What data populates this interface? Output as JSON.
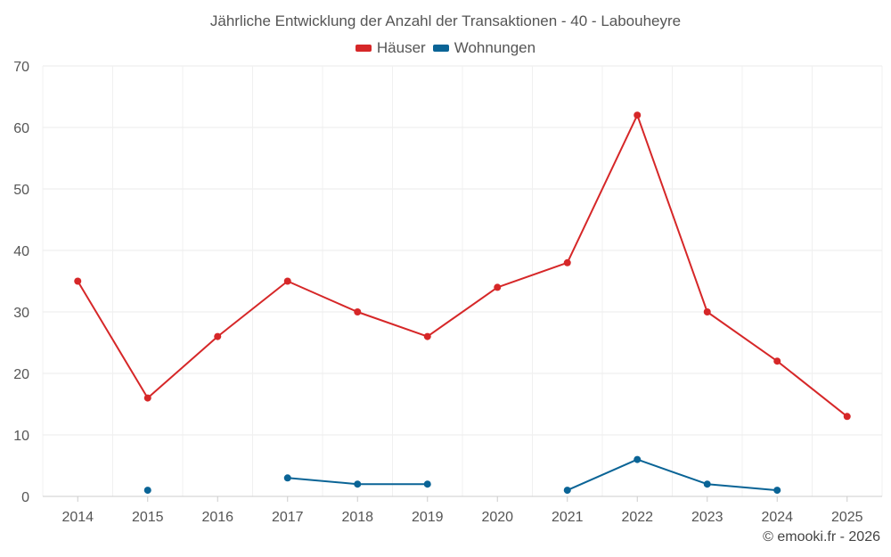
{
  "chart_data": {
    "type": "line",
    "title": "Jährliche Entwicklung der Anzahl der Transaktionen - 40 - Labouheyre",
    "categories": [
      "2014",
      "2015",
      "2016",
      "2017",
      "2018",
      "2019",
      "2020",
      "2021",
      "2022",
      "2023",
      "2024",
      "2025"
    ],
    "series": [
      {
        "name": "Häuser",
        "color": "#d62728",
        "values": [
          35,
          16,
          26,
          35,
          30,
          26,
          34,
          38,
          62,
          30,
          22,
          13
        ]
      },
      {
        "name": "Wohnungen",
        "color": "#0a6496",
        "values": [
          null,
          1,
          null,
          3,
          2,
          2,
          null,
          1,
          6,
          2,
          1,
          null
        ]
      }
    ],
    "ylim": [
      0,
      70
    ],
    "yticks": [
      0,
      10,
      20,
      30,
      40,
      50,
      60,
      70
    ],
    "grid": true,
    "legend_position": "top-center",
    "xlabel": "",
    "ylabel": ""
  },
  "credit": "© emooki.fr - 2026"
}
